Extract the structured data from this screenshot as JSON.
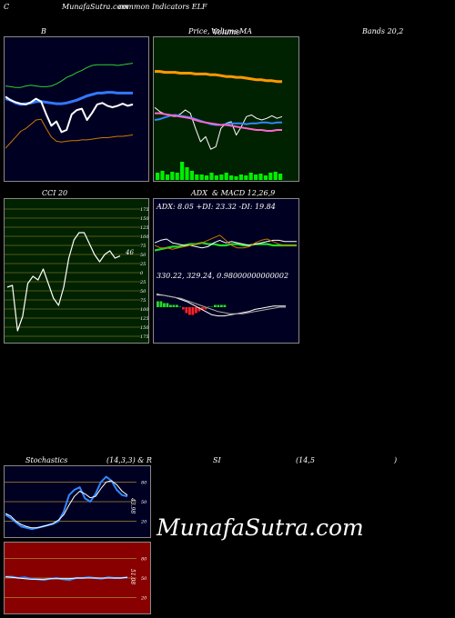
{
  "header": {
    "left_code": "C",
    "site": "MunafaSutra.com",
    "title_tail": "common Indicators ELF"
  },
  "bb_panel": {
    "label_b": "B",
    "label_bands": "Bands 20,2"
  },
  "price_panel": {
    "label": "Price,",
    "label_overlap_1": "Volume",
    "label_overlap_2": "Volume",
    "label_ma": "MA"
  },
  "cci_panel": {
    "label": "CCI 20",
    "ticks": [
      "175",
      "150",
      "125",
      "100",
      "75",
      "50",
      "25",
      "0",
      "25",
      "50",
      "75",
      "100",
      "125",
      "150",
      "175"
    ],
    "value_label": "46"
  },
  "adx_panel": {
    "label": "ADX  & MACD 12,26,9",
    "stats": "ADX: 8.05  +DI: 23.32  -DI: 19.84"
  },
  "macd_panel": {
    "values": "330.22,  329.24,  0.98000000000002"
  },
  "stoch_panel": {
    "label_left": "Stochastics",
    "label_params": "(14,3,3) & R",
    "label_si": "SI",
    "label_rsi_params": "(14,5",
    "label_paren": ")",
    "ticks": [
      "80",
      "50",
      "20"
    ],
    "value_label": "43.98"
  },
  "rsi_panel": {
    "ticks": [
      "80",
      "50",
      "20"
    ],
    "value_label": "51.08"
  },
  "watermark": "MunafaSutra.com",
  "colors": {
    "bb_bg": "#000022",
    "price_bg": "#002200",
    "cci_bg": "#002200",
    "adx_bg": "#000022",
    "rsi_bg": "#880000"
  },
  "chart_data": [
    {
      "type": "line",
      "name": "bollinger",
      "series": [
        {
          "role": "upper",
          "values": [
            70,
            71,
            72,
            72,
            70,
            69,
            70,
            71,
            71,
            70,
            67,
            63,
            58,
            55,
            51,
            48,
            44,
            41,
            40,
            40,
            40,
            40,
            41,
            40,
            39,
            38
          ]
        },
        {
          "role": "middle",
          "values": [
            88,
            90,
            94,
            96,
            95,
            94,
            92,
            92,
            93,
            94,
            95,
            95,
            94,
            92,
            90,
            87,
            84,
            82,
            80,
            80,
            79,
            79,
            80,
            80,
            80,
            80
          ]
        },
        {
          "role": "lower",
          "values": [
            158,
            150,
            142,
            134,
            130,
            124,
            118,
            117,
            130,
            142,
            148,
            149,
            148,
            147,
            147,
            146,
            146,
            145,
            144,
            143,
            143,
            142,
            141,
            141,
            140,
            139
          ]
        },
        {
          "role": "price",
          "values": [
            85,
            90,
            93,
            95,
            96,
            93,
            88,
            92,
            110,
            126,
            120,
            135,
            132,
            110,
            104,
            102,
            118,
            108,
            96,
            94,
            98,
            100,
            98,
            95,
            98,
            96
          ]
        }
      ]
    },
    {
      "type": "line",
      "name": "price_volume_ma",
      "series": [
        {
          "role": "ma_long",
          "values": [
            42,
            42,
            43,
            43,
            43,
            44,
            44,
            44,
            45,
            45,
            45,
            46,
            46,
            47,
            48,
            48,
            49,
            49,
            50,
            51,
            52,
            52,
            53,
            53,
            54,
            54
          ]
        },
        {
          "role": "price",
          "values": [
            85,
            90,
            93,
            95,
            96,
            93,
            88,
            92,
            110,
            126,
            120,
            135,
            132,
            110,
            104,
            102,
            118,
            108,
            96,
            94,
            98,
            100,
            98,
            95,
            98,
            96
          ]
        },
        {
          "role": "ma_short",
          "values": [
            100,
            99,
            97,
            95,
            94,
            95,
            96,
            97,
            99,
            101,
            103,
            105,
            106,
            106,
            105,
            104,
            104,
            104,
            105,
            104,
            104,
            103,
            103,
            104,
            103,
            103
          ]
        },
        {
          "role": "ma_mid",
          "values": [
            92,
            92,
            93,
            94,
            95,
            96,
            97,
            98,
            100,
            102,
            103,
            104,
            105,
            106,
            106,
            107,
            108,
            109,
            110,
            111,
            112,
            112,
            113,
            113,
            112,
            112
          ]
        }
      ],
      "volume": [
        8,
        10,
        6,
        9,
        8,
        20,
        14,
        10,
        6,
        6,
        5,
        8,
        5,
        6,
        8,
        5,
        4,
        6,
        5,
        8,
        6,
        7,
        5,
        8,
        9,
        7
      ]
    },
    {
      "type": "line",
      "name": "cci",
      "ylim": [
        -175,
        175
      ],
      "values": [
        -40,
        -35,
        -160,
        -120,
        -30,
        -10,
        -20,
        10,
        -30,
        -70,
        -90,
        -40,
        40,
        90,
        110,
        110,
        80,
        50,
        30,
        50,
        60,
        40,
        46
      ]
    },
    {
      "type": "line",
      "name": "adx",
      "series": [
        {
          "role": "adx",
          "values": [
            16,
            17,
            18,
            19,
            19,
            20,
            21,
            21,
            22,
            21,
            21,
            20,
            20,
            21,
            21,
            20,
            20,
            21,
            21,
            21,
            20,
            20,
            20,
            20,
            20
          ]
        },
        {
          "role": "plus_di",
          "values": [
            22,
            24,
            25,
            22,
            21,
            20,
            20,
            19,
            18,
            19,
            22,
            24,
            22,
            23,
            22,
            21,
            20,
            21,
            22,
            23,
            24,
            24,
            23,
            23,
            23
          ]
        },
        {
          "role": "minus_di",
          "values": [
            20,
            18,
            18,
            17,
            18,
            19,
            20,
            21,
            22,
            24,
            26,
            28,
            24,
            20,
            18,
            18,
            19,
            22,
            24,
            25,
            23,
            21,
            20,
            20,
            20
          ]
        }
      ]
    },
    {
      "type": "line",
      "name": "macd",
      "series": [
        {
          "role": "macd",
          "values": [
            12,
            11,
            10,
            9,
            7,
            5,
            2,
            -1,
            -4,
            -7,
            -8,
            -8,
            -7,
            -6,
            -5,
            -4,
            -2,
            -1,
            0,
            1,
            1,
            1
          ]
        },
        {
          "role": "signal",
          "values": [
            11,
            11,
            10,
            9,
            8,
            6,
            4,
            2,
            0,
            -2,
            -4,
            -5,
            -6,
            -6,
            -6,
            -5,
            -4,
            -3,
            -2,
            -1,
            0,
            0
          ]
        }
      ],
      "histogram": [
        3,
        3,
        2,
        2,
        1,
        1,
        1,
        0,
        -1,
        -3,
        -4,
        -4,
        -3,
        -2,
        -1,
        -1,
        0,
        0,
        1,
        1,
        1,
        1
      ]
    },
    {
      "type": "line",
      "name": "stochastics",
      "ylim": [
        0,
        100
      ],
      "series": [
        {
          "role": "k",
          "values": [
            30,
            25,
            18,
            12,
            10,
            8,
            10,
            12,
            14,
            16,
            20,
            35,
            60,
            68,
            72,
            55,
            50,
            62,
            80,
            88,
            82,
            68,
            60,
            58
          ]
        },
        {
          "role": "d",
          "values": [
            32,
            28,
            20,
            15,
            12,
            10,
            10,
            12,
            14,
            17,
            22,
            30,
            45,
            58,
            66,
            62,
            56,
            58,
            70,
            80,
            82,
            76,
            66,
            60
          ]
        }
      ]
    },
    {
      "type": "line",
      "name": "rsi",
      "ylim": [
        0,
        100
      ],
      "series": [
        {
          "role": "rsi",
          "values": [
            52,
            52,
            50,
            51,
            49,
            48,
            47,
            49,
            50,
            48,
            47,
            50,
            50,
            51,
            50,
            49,
            51,
            50,
            50,
            51
          ]
        },
        {
          "role": "rsi_smooth",
          "values": [
            52,
            51,
            50,
            49,
            48,
            48,
            48,
            49,
            49,
            49,
            49,
            50,
            50,
            50,
            50,
            50,
            50,
            50,
            50,
            51
          ]
        }
      ]
    }
  ]
}
